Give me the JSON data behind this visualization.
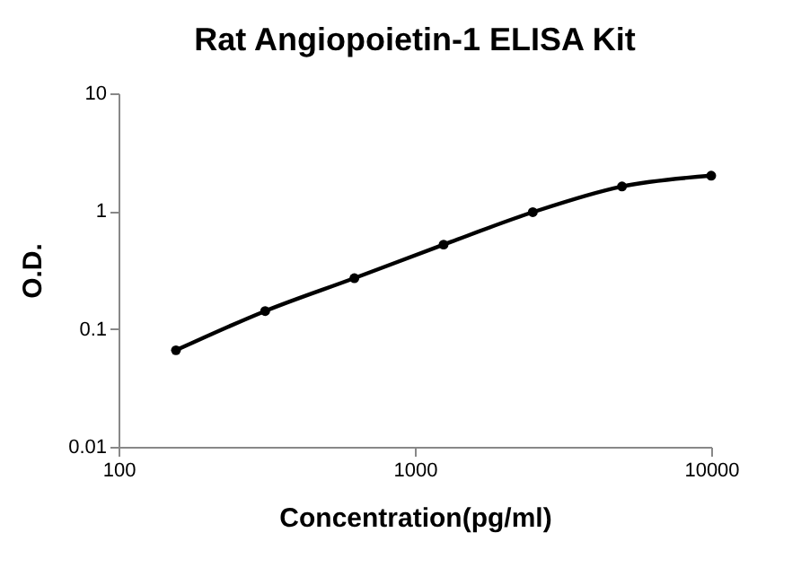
{
  "chart_data": {
    "type": "line",
    "title": "Rat Angiopoietin-1 ELISA Kit",
    "xlabel": "Concentration(pg/ml)",
    "ylabel": "O.D.",
    "x": [
      156.25,
      312.5,
      625,
      1250,
      2500,
      5000,
      10000
    ],
    "series": [
      {
        "color": "#000000",
        "values": [
          0.066,
          0.142,
          0.27,
          0.52,
          0.98,
          1.62,
          2.0
        ]
      }
    ],
    "xlim": [
      100,
      10000
    ],
    "xticks": [
      100,
      1000,
      10000
    ],
    "ylim": [
      0.01,
      10
    ],
    "yticks": [
      0.01,
      0.1,
      1,
      10
    ],
    "log": "xy",
    "grid": false,
    "marker": "circle",
    "line_style": "solid"
  }
}
